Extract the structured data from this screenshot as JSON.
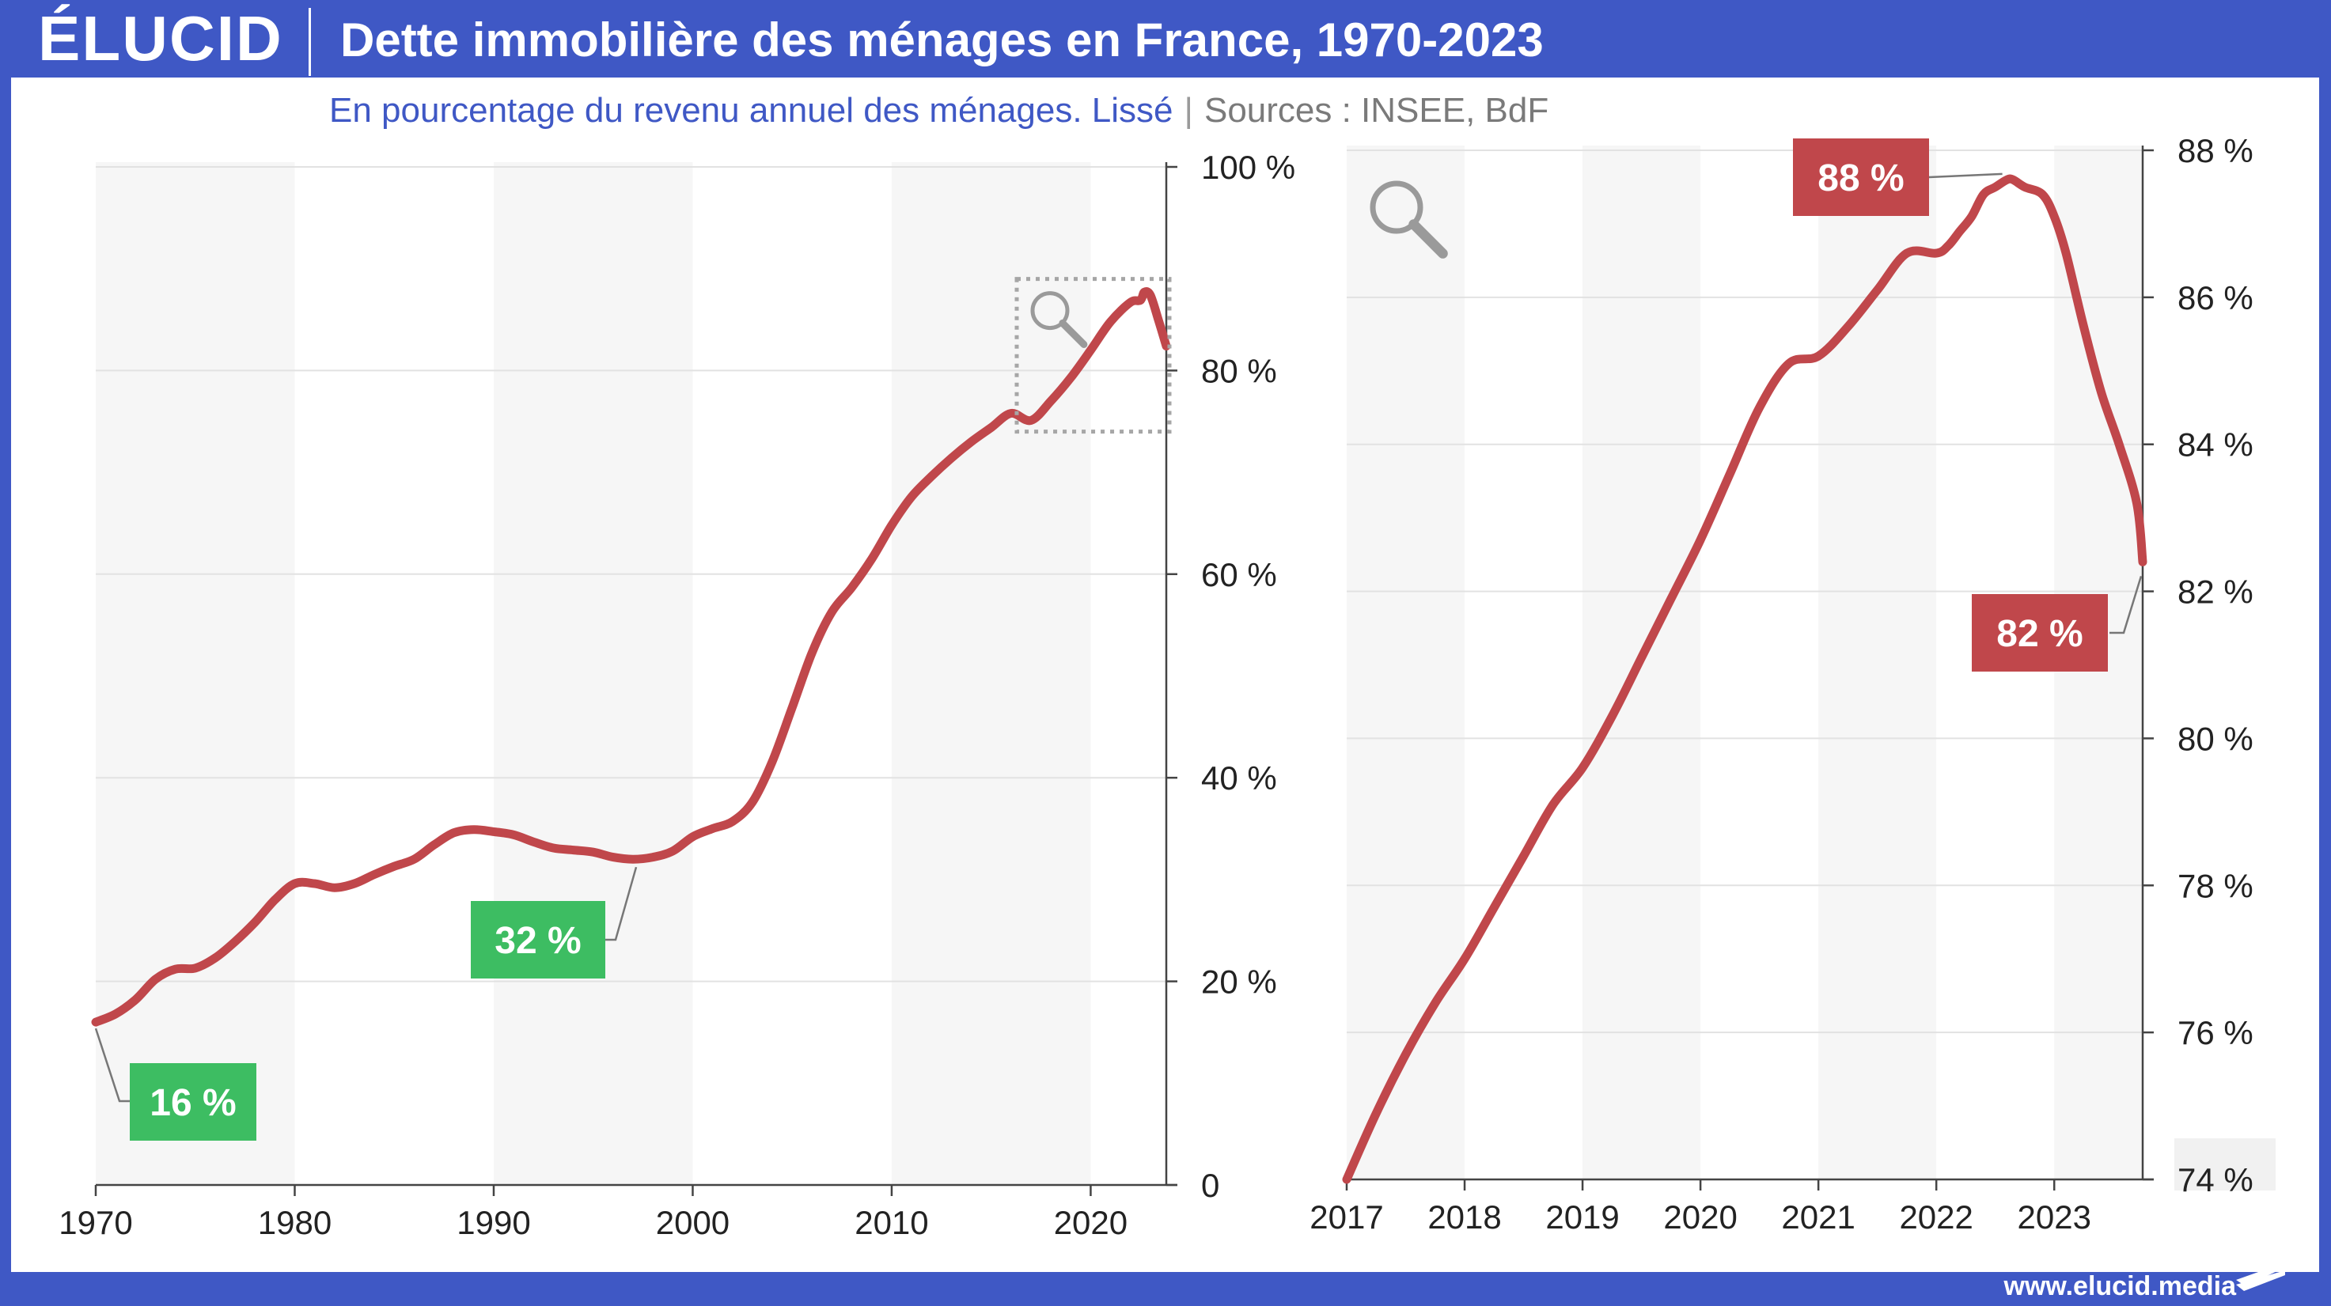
{
  "header": {
    "logo": "ÉLUCID",
    "title": "Dette immobilière des ménages en France, 1970-2023"
  },
  "subtitle": "En pourcentage du revenu annuel des ménages. Lissé",
  "subtitle_separator": "|",
  "sources": "Sources : INSEE, BdF",
  "footer": {
    "url": "www.elucid.media"
  },
  "icons": [
    "magnifier-icon",
    "elucid-flag-icon"
  ],
  "colors": {
    "header_bg": "#3f58c5",
    "line": "#c0474b",
    "badge_green": "#3dbd62",
    "badge_red": "#c0474b",
    "band": "#f6f6f6",
    "grid": "#e2e2e2",
    "callout": "#777777",
    "axis": "#444444"
  },
  "chart_data": [
    {
      "type": "line",
      "title": "",
      "xlabel": "",
      "ylabel": "",
      "xlim": [
        1970,
        2023.8
      ],
      "ylim": [
        0,
        100
      ],
      "x_ticks": [
        1970,
        1980,
        1990,
        2000,
        2010,
        2020
      ],
      "x_tick_labels": [
        "1970",
        "1980",
        "1990",
        "2000",
        "2010",
        "2020"
      ],
      "y_ticks": [
        0,
        20,
        40,
        60,
        80,
        100
      ],
      "y_tick_labels": [
        "0",
        "20 %",
        "40 %",
        "60 %",
        "80 %",
        "100 %"
      ],
      "y_axis_side": "right",
      "grid": true,
      "alternating_bands": true,
      "series": [
        {
          "x": [
            1970,
            1971,
            1972,
            1973,
            1974,
            1975,
            1976,
            1977,
            1978,
            1979,
            1980,
            1981,
            1982,
            1983,
            1984,
            1985,
            1986,
            1987,
            1988,
            1989,
            1990,
            1991,
            1992,
            1993,
            1994,
            1995,
            1996,
            1997,
            1998,
            1999,
            2000,
            2001,
            2002,
            2003,
            2004,
            2005,
            2006,
            2007,
            2008,
            2009,
            2010,
            2011,
            2012,
            2013,
            2014,
            2015,
            2016,
            2017,
            2018,
            2019,
            2020,
            2021,
            2022,
            2022.5,
            2022.7,
            2023,
            2023.4,
            2023.8
          ],
          "values": [
            16,
            16.8,
            18.2,
            20.2,
            21.2,
            21.3,
            22.3,
            23.9,
            25.8,
            28,
            29.6,
            29.6,
            29.2,
            29.6,
            30.5,
            31.3,
            32,
            33.4,
            34.6,
            34.9,
            34.7,
            34.4,
            33.7,
            33.1,
            32.9,
            32.7,
            32.2,
            32,
            32.2,
            32.8,
            34.2,
            35,
            35.7,
            37.6,
            41.6,
            46.9,
            52.3,
            56.3,
            58.7,
            61.5,
            64.8,
            67.6,
            69.6,
            71.4,
            73,
            74.4,
            75.8,
            75.1,
            77,
            79.3,
            82,
            84.8,
            86.7,
            86.9,
            87.7,
            87.4,
            85,
            82.4
          ]
        }
      ],
      "annotations": [
        {
          "text": "16 %",
          "x": 1970,
          "y": 16,
          "color": "green"
        },
        {
          "text": "32 %",
          "x": 1997,
          "y": 32,
          "color": "green"
        }
      ],
      "zoom_region": {
        "x": [
          2017,
          2023.8
        ],
        "y": [
          74,
          89
        ]
      }
    },
    {
      "type": "line",
      "title": "",
      "xlabel": "",
      "ylabel": "",
      "xlim": [
        2017,
        2023.75
      ],
      "ylim": [
        74,
        88
      ],
      "x_ticks": [
        2017,
        2018,
        2019,
        2020,
        2021,
        2022,
        2023
      ],
      "x_tick_labels": [
        "2017",
        "2018",
        "2019",
        "2020",
        "2021",
        "2022",
        "2023"
      ],
      "y_ticks": [
        74,
        76,
        78,
        80,
        82,
        84,
        86,
        88
      ],
      "y_tick_labels": [
        "74 %",
        "76 %",
        "78 %",
        "80 %",
        "82 %",
        "84 %",
        "86 %",
        "88 %"
      ],
      "y_axis_side": "right",
      "grid": true,
      "alternating_bands": true,
      "series": [
        {
          "x": [
            2017,
            2017.25,
            2017.5,
            2017.75,
            2018,
            2018.25,
            2018.5,
            2018.75,
            2019,
            2019.25,
            2019.5,
            2019.75,
            2020,
            2020.25,
            2020.5,
            2020.75,
            2021,
            2021.25,
            2021.5,
            2021.75,
            2022,
            2022.1,
            2022.2,
            2022.3,
            2022.4,
            2022.5,
            2022.6,
            2022.65,
            2022.75,
            2022.9,
            2023,
            2023.1,
            2023.25,
            2023.4,
            2023.55,
            2023.7,
            2023.75
          ],
          "values": [
            74,
            74.9,
            75.7,
            76.4,
            77,
            77.7,
            78.4,
            79.1,
            79.6,
            80.3,
            81.1,
            81.9,
            82.7,
            83.6,
            84.5,
            85.1,
            85.2,
            85.6,
            86.1,
            86.6,
            86.6,
            86.7,
            86.9,
            87.1,
            87.4,
            87.5,
            87.6,
            87.6,
            87.5,
            87.4,
            87.1,
            86.6,
            85.6,
            84.7,
            84.0,
            83.2,
            82.4
          ]
        }
      ],
      "annotations": [
        {
          "text": "88 %",
          "x": 2022.6,
          "y": 88,
          "color": "red"
        },
        {
          "text": "82 %",
          "x": 2023.75,
          "y": 82,
          "color": "red"
        }
      ]
    }
  ]
}
